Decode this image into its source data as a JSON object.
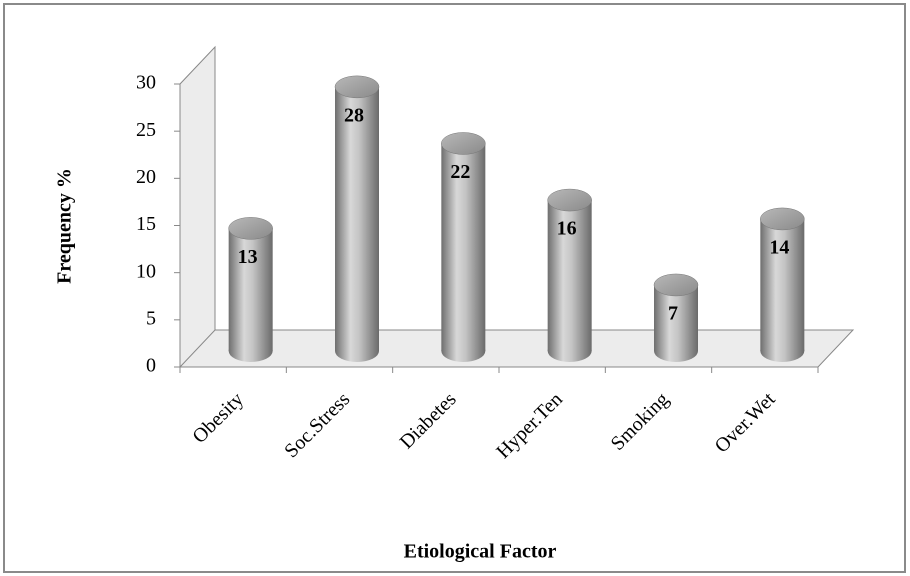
{
  "chart_data": {
    "type": "bar",
    "style": "3d-cylinder",
    "x_label": "Etiological Factor",
    "y_label": "Frequency %",
    "categories": [
      "Obesity",
      "Soc.Stress",
      "Diabetes",
      "Hyper.Ten",
      "Smoking",
      "Over.Wet"
    ],
    "values": [
      13,
      28,
      22,
      16,
      7,
      14
    ],
    "color": "#9a9a9a",
    "ylim": [
      0,
      30
    ],
    "yticks": [
      0,
      5,
      10,
      15,
      20,
      25,
      30
    ],
    "grid": false,
    "data_labels": true
  }
}
